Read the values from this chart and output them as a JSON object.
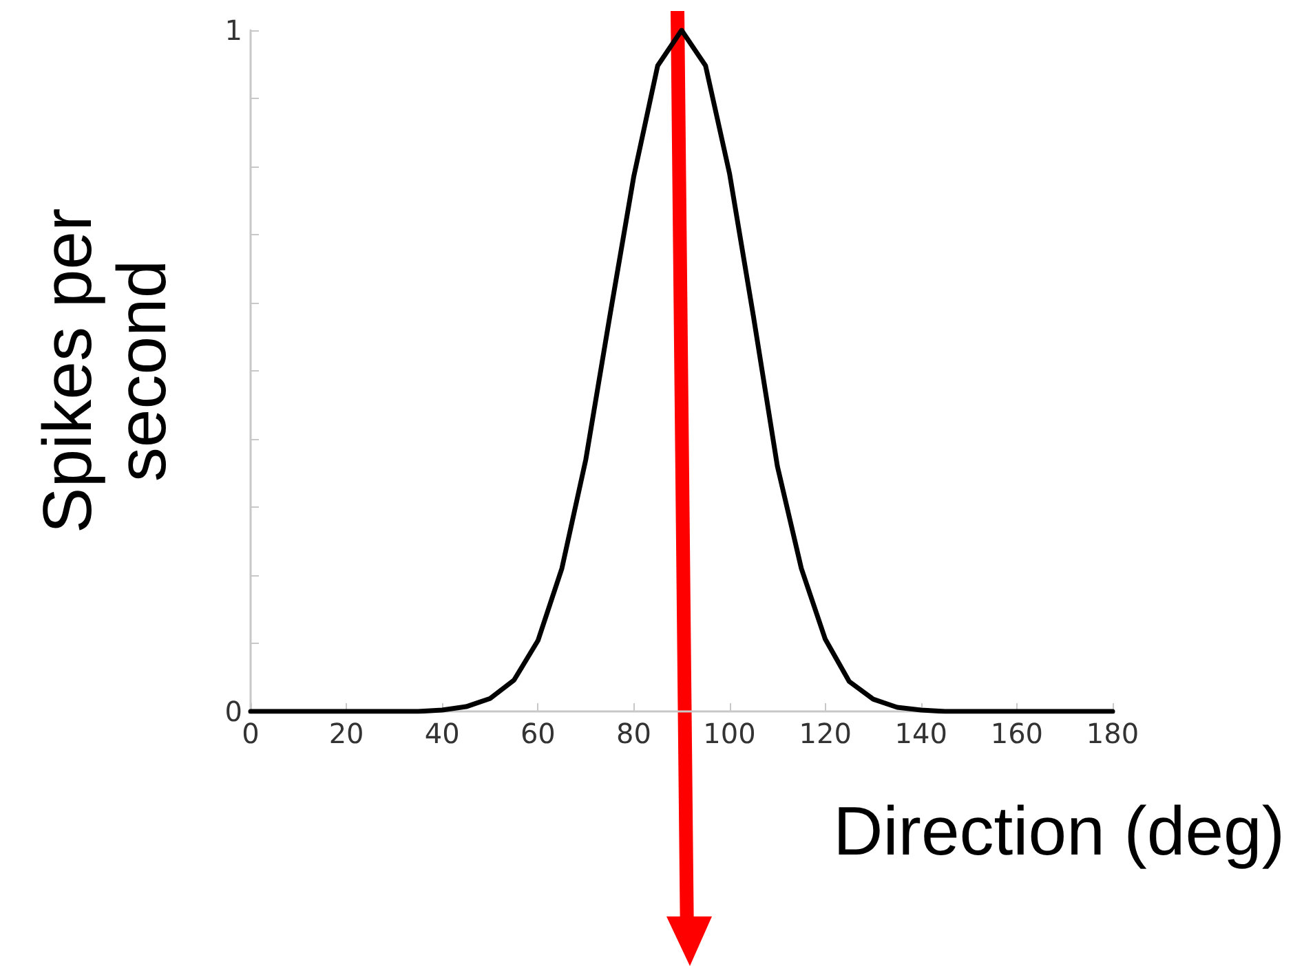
{
  "chart_data": {
    "type": "line",
    "xlabel": "Direction (deg)",
    "ylabel": "Spikes per second",
    "x": [
      0,
      5,
      10,
      15,
      20,
      25,
      30,
      35,
      40,
      45,
      50,
      55,
      60,
      65,
      70,
      75,
      80,
      85,
      90,
      95,
      100,
      105,
      110,
      115,
      120,
      125,
      130,
      135,
      140,
      145,
      150,
      155,
      160,
      165,
      170,
      175,
      180
    ],
    "series": [
      {
        "color": "#000000",
        "values": [
          0,
          0,
          0,
          0,
          0,
          0,
          0,
          0,
          0.002,
          0.007,
          0.019,
          0.046,
          0.104,
          0.21,
          0.37,
          0.58,
          0.785,
          0.948,
          1,
          0.948,
          0.79,
          0.58,
          0.36,
          0.21,
          0.106,
          0.044,
          0.018,
          0.006,
          0.002,
          0,
          0,
          0,
          0,
          0,
          0,
          0,
          0
        ]
      }
    ],
    "xlim": [
      0,
      180
    ],
    "xticks": [
      0,
      20,
      40,
      60,
      80,
      100,
      120,
      140,
      160,
      180
    ],
    "ylim": [
      0,
      1
    ],
    "yticks": [
      0,
      {
        "value": 0.1,
        "label": null
      },
      {
        "value": 0.2,
        "label": null
      },
      {
        "value": 0.3,
        "label": null
      },
      {
        "value": 0.4,
        "label": null
      },
      {
        "value": 0.5,
        "label": null
      },
      {
        "value": 0.6,
        "label": null
      },
      {
        "value": 0.7,
        "label": null
      },
      {
        "value": 0.8,
        "label": null
      },
      {
        "value": 0.9,
        "label": null
      },
      1
    ],
    "grid": false,
    "marker": "none",
    "line_style": "solid"
  }
}
